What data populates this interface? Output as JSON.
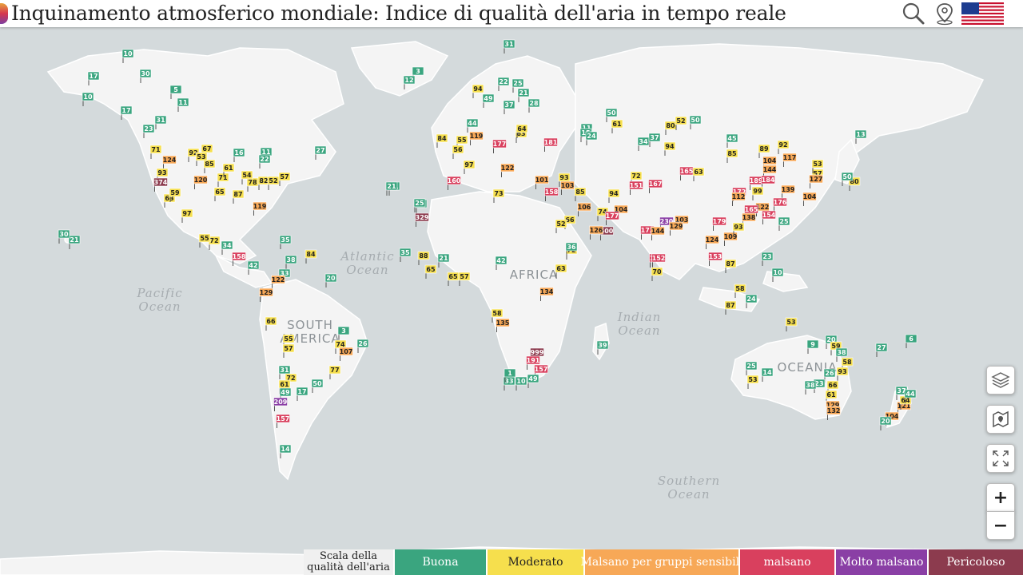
{
  "header": {
    "title": "Inquinamento atmosferico mondiale: Indice di qualità dell'aria in tempo reale",
    "icons": [
      "search-icon",
      "map-pin-icon",
      "us-flag-icon"
    ]
  },
  "map": {
    "ocean_labels": [
      {
        "name": "pacific",
        "lines": [
          "Pacific",
          "Ocean"
        ]
      },
      {
        "name": "atlantic",
        "lines": [
          "Atlantic",
          "Ocean"
        ]
      },
      {
        "name": "indian",
        "lines": [
          "Indian",
          "Ocean"
        ]
      },
      {
        "name": "southern",
        "lines": [
          "Southern",
          "Ocean"
        ]
      }
    ],
    "continent_labels": [
      {
        "name": "south-america",
        "lines": [
          "SOUTH",
          "AMERICA"
        ]
      },
      {
        "name": "africa",
        "lines": [
          "AFRICA"
        ]
      },
      {
        "name": "oceania",
        "lines": [
          "OCEANIA"
        ]
      }
    ],
    "stations": [
      {
        "aqi": 10
      },
      {
        "aqi": 17
      },
      {
        "aqi": 30
      },
      {
        "aqi": 10
      },
      {
        "aqi": 17
      },
      {
        "aqi": 5
      },
      {
        "aqi": 11
      },
      {
        "aqi": 31
      },
      {
        "aqi": 23
      },
      {
        "aqi": 71
      },
      {
        "aqi": 124
      },
      {
        "aqi": 93
      },
      {
        "aqi": 374
      },
      {
        "aqi": 63
      },
      {
        "aqi": 59
      },
      {
        "aqi": 120
      },
      {
        "aqi": 85
      },
      {
        "aqi": 92
      },
      {
        "aqi": 67
      },
      {
        "aqi": 53
      },
      {
        "aqi": 65
      },
      {
        "aqi": 87
      },
      {
        "aqi": 71
      },
      {
        "aqi": 78
      },
      {
        "aqi": 82
      },
      {
        "aqi": 52
      },
      {
        "aqi": 57
      },
      {
        "aqi": 54
      },
      {
        "aqi": 61
      },
      {
        "aqi": 97
      },
      {
        "aqi": 119
      },
      {
        "aqi": 72
      },
      {
        "aqi": 55
      },
      {
        "aqi": 34
      },
      {
        "aqi": 21
      },
      {
        "aqi": 25
      },
      {
        "aqi": 27
      },
      {
        "aqi": 11
      },
      {
        "aqi": 16
      },
      {
        "aqi": 22
      },
      {
        "aqi": 30
      },
      {
        "aqi": 21
      },
      {
        "aqi": 35
      },
      {
        "aqi": 158
      },
      {
        "aqi": 42
      },
      {
        "aqi": 38
      },
      {
        "aqi": 33
      },
      {
        "aqi": 122
      },
      {
        "aqi": 129
      },
      {
        "aqi": 84
      },
      {
        "aqi": 20
      },
      {
        "aqi": 66
      },
      {
        "aqi": 55
      },
      {
        "aqi": 57
      },
      {
        "aqi": 3
      },
      {
        "aqi": 74
      },
      {
        "aqi": 107
      },
      {
        "aqi": 26
      },
      {
        "aqi": 77
      },
      {
        "aqi": 31
      },
      {
        "aqi": 72
      },
      {
        "aqi": 61
      },
      {
        "aqi": 49
      },
      {
        "aqi": 209
      },
      {
        "aqi": 17
      },
      {
        "aqi": 50
      },
      {
        "aqi": 157
      },
      {
        "aqi": 14
      },
      {
        "aqi": 3
      },
      {
        "aqi": 12
      },
      {
        "aqi": 31
      },
      {
        "aqi": 94
      },
      {
        "aqi": 22
      },
      {
        "aqi": 49
      },
      {
        "aqi": 25
      },
      {
        "aqi": 21
      },
      {
        "aqi": 37
      },
      {
        "aqi": 28
      },
      {
        "aqi": 55
      },
      {
        "aqi": 119
      },
      {
        "aqi": 177
      },
      {
        "aqi": 181
      },
      {
        "aqi": 84
      },
      {
        "aqi": 56
      },
      {
        "aqi": 97
      },
      {
        "aqi": 44
      },
      {
        "aqi": 63
      },
      {
        "aqi": 64
      },
      {
        "aqi": 160
      },
      {
        "aqi": 122
      },
      {
        "aqi": 73
      },
      {
        "aqi": 101
      },
      {
        "aqi": 158
      },
      {
        "aqi": 93
      },
      {
        "aqi": 103
      },
      {
        "aqi": 21
      },
      {
        "aqi": 25
      },
      {
        "aqi": 329
      },
      {
        "aqi": 35
      },
      {
        "aqi": 88
      },
      {
        "aqi": 65
      },
      {
        "aqi": 21
      },
      {
        "aqi": 65
      },
      {
        "aqi": 57
      },
      {
        "aqi": 42
      },
      {
        "aqi": 63
      },
      {
        "aqi": 134
      },
      {
        "aqi": 58
      },
      {
        "aqi": 135
      },
      {
        "aqi": 999
      },
      {
        "aqi": 191
      },
      {
        "aqi": 157
      },
      {
        "aqi": 49
      },
      {
        "aqi": 33
      },
      {
        "aqi": 10
      },
      {
        "aqi": 1
      },
      {
        "aqi": 39
      },
      {
        "aqi": 50
      },
      {
        "aqi": 61
      },
      {
        "aqi": 11
      },
      {
        "aqi": 15
      },
      {
        "aqi": 24
      },
      {
        "aqi": 85
      },
      {
        "aqi": 94
      },
      {
        "aqi": 106
      },
      {
        "aqi": 74
      },
      {
        "aqi": 104
      },
      {
        "aqi": 177
      },
      {
        "aqi": 500
      },
      {
        "aqi": 126
      },
      {
        "aqi": 66
      },
      {
        "aqi": 52
      },
      {
        "aqi": 72
      },
      {
        "aqi": 36
      },
      {
        "aqi": 34
      },
      {
        "aqi": 37
      },
      {
        "aqi": 50
      },
      {
        "aqi": 80
      },
      {
        "aqi": 52
      },
      {
        "aqi": 94
      },
      {
        "aqi": 72
      },
      {
        "aqi": 151
      },
      {
        "aqi": 167
      },
      {
        "aqi": 165
      },
      {
        "aqi": 63
      },
      {
        "aqi": 45
      },
      {
        "aqi": 85
      },
      {
        "aqi": 89
      },
      {
        "aqi": 92
      },
      {
        "aqi": 53
      },
      {
        "aqi": 117
      },
      {
        "aqi": 104
      },
      {
        "aqi": 144
      },
      {
        "aqi": 189
      },
      {
        "aqi": 184
      },
      {
        "aqi": 172
      },
      {
        "aqi": 112
      },
      {
        "aqi": 99
      },
      {
        "aqi": 139
      },
      {
        "aqi": 176
      },
      {
        "aqi": 154
      },
      {
        "aqi": 122
      },
      {
        "aqi": 165
      },
      {
        "aqi": 138
      },
      {
        "aqi": 179
      },
      {
        "aqi": 230
      },
      {
        "aqi": 103
      },
      {
        "aqi": 173
      },
      {
        "aqi": 144
      },
      {
        "aqi": 129
      },
      {
        "aqi": 153
      },
      {
        "aqi": 152
      },
      {
        "aqi": 70
      },
      {
        "aqi": 124
      },
      {
        "aqi": 109
      },
      {
        "aqi": 93
      },
      {
        "aqi": 153
      },
      {
        "aqi": 87
      },
      {
        "aqi": 58
      },
      {
        "aqi": 87
      },
      {
        "aqi": 24
      },
      {
        "aqi": 23
      },
      {
        "aqi": 10
      },
      {
        "aqi": 25
      },
      {
        "aqi": 53
      },
      {
        "aqi": 57
      },
      {
        "aqi": 127
      },
      {
        "aqi": 104
      },
      {
        "aqi": 13
      },
      {
        "aqi": 53
      },
      {
        "aqi": 20
      },
      {
        "aqi": 59
      },
      {
        "aqi": 38
      },
      {
        "aqi": 58
      },
      {
        "aqi": 93
      },
      {
        "aqi": 26
      },
      {
        "aqi": 23
      },
      {
        "aqi": 66
      },
      {
        "aqi": 61
      },
      {
        "aqi": 129
      },
      {
        "aqi": 132
      },
      {
        "aqi": 38
      },
      {
        "aqi": 25
      },
      {
        "aqi": 14
      },
      {
        "aqi": 53
      },
      {
        "aqi": 9
      },
      {
        "aqi": 27
      },
      {
        "aqi": 6
      },
      {
        "aqi": 37
      },
      {
        "aqi": 121
      },
      {
        "aqi": 104
      },
      {
        "aqi": 20
      },
      {
        "aqi": 64
      },
      {
        "aqi": 44
      },
      {
        "aqi": 80
      },
      {
        "aqi": 50
      }
    ]
  },
  "legend": {
    "title": "Scala della qualità dell'aria",
    "items": [
      {
        "label": "Buona",
        "color": "#3aa57f"
      },
      {
        "label": "Moderato",
        "color": "#f6df4d"
      },
      {
        "label": "Malsano per gruppi sensibili",
        "color": "#f7a857"
      },
      {
        "label": "malsano",
        "color": "#d9405e"
      },
      {
        "label": "Molto malsano",
        "color": "#8a3fa5"
      },
      {
        "label": "Pericoloso",
        "color": "#8c3b4e"
      }
    ]
  },
  "controls": {
    "zoom_in": "+",
    "zoom_out": "−",
    "icons": [
      "layers-icon",
      "map-icon",
      "fullscreen-icon"
    ]
  }
}
